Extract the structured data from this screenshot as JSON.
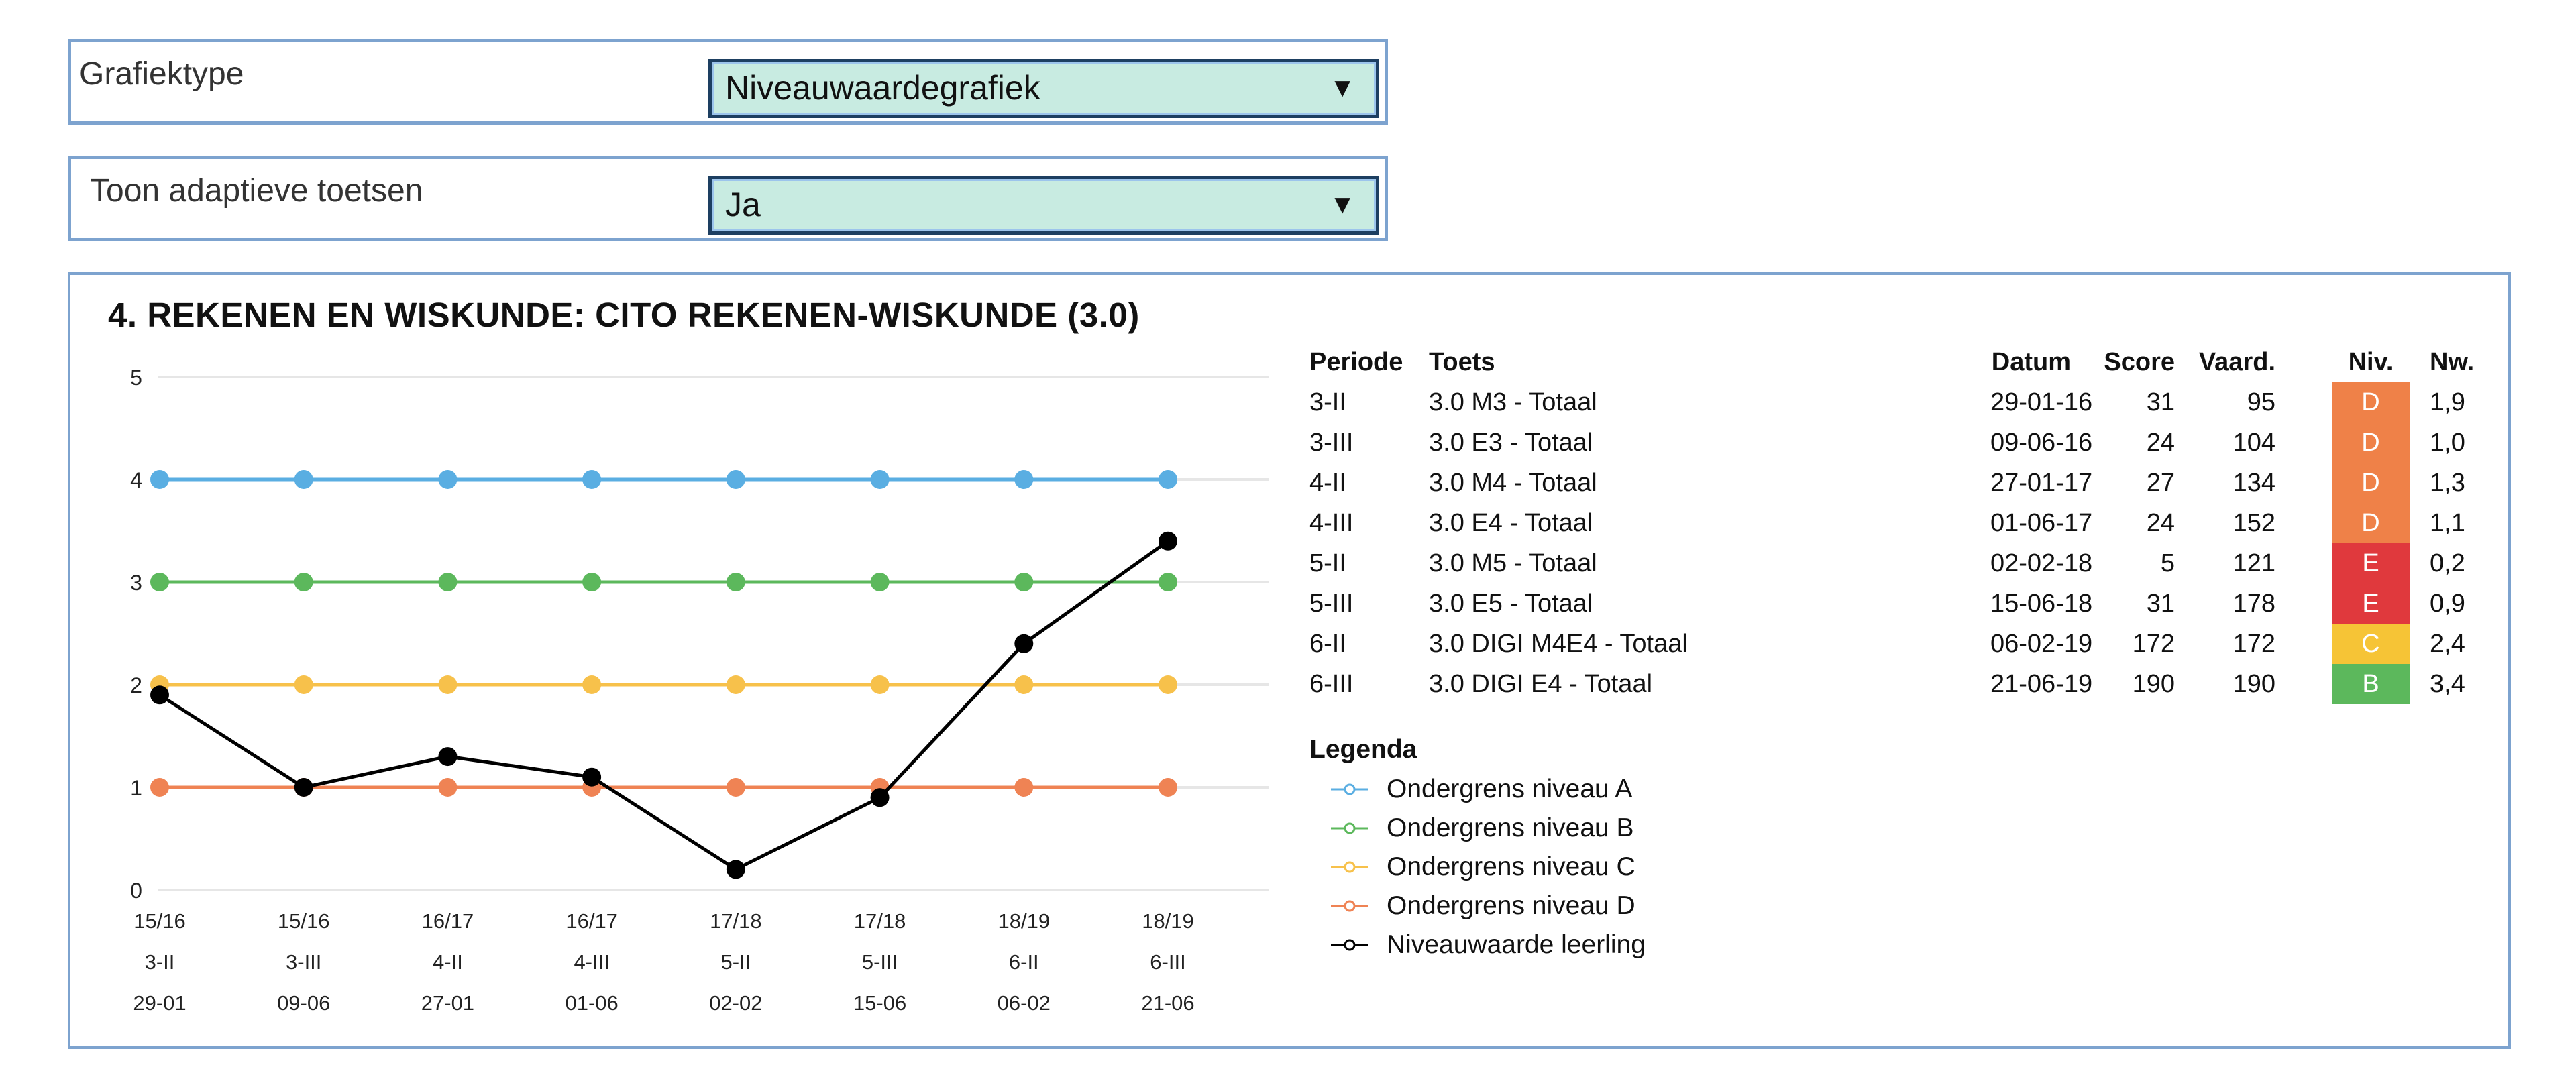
{
  "controls": {
    "graph_type": {
      "label": "Grafiektype",
      "value": "Niveauwaardegrafiek"
    },
    "adaptive": {
      "label": "Toon adaptieve toetsen",
      "value": "Ja"
    }
  },
  "panel": {
    "title": "4. REKENEN EN WISKUNDE: CITO REKENEN-WISKUNDE (3.0)"
  },
  "table": {
    "headers": {
      "periode": "Periode",
      "toets": "Toets",
      "datum": "Datum",
      "score": "Score",
      "vaard": "Vaard.",
      "niv": "Niv.",
      "nw": "Nw."
    },
    "rows": [
      {
        "periode": "3-II",
        "toets": "3.0 M3 - Totaal",
        "datum": "29-01-16",
        "score": "31",
        "vaard": "95",
        "niv": "D",
        "niv_color": "#ef8148",
        "nw": "1,9"
      },
      {
        "periode": "3-III",
        "toets": "3.0 E3 - Totaal",
        "datum": "09-06-16",
        "score": "24",
        "vaard": "104",
        "niv": "D",
        "niv_color": "#ef8148",
        "nw": "1,0"
      },
      {
        "periode": "4-II",
        "toets": "3.0 M4 - Totaal",
        "datum": "27-01-17",
        "score": "27",
        "vaard": "134",
        "niv": "D",
        "niv_color": "#ef8148",
        "nw": "1,3"
      },
      {
        "periode": "4-III",
        "toets": "3.0 E4 - Totaal",
        "datum": "01-06-17",
        "score": "24",
        "vaard": "152",
        "niv": "D",
        "niv_color": "#ef8148",
        "nw": "1,1"
      },
      {
        "periode": "5-II",
        "toets": "3.0 M5 - Totaal",
        "datum": "02-02-18",
        "score": "5",
        "vaard": "121",
        "niv": "E",
        "niv_color": "#e0393d",
        "nw": "0,2"
      },
      {
        "periode": "5-III",
        "toets": "3.0 E5 - Totaal",
        "datum": "15-06-18",
        "score": "31",
        "vaard": "178",
        "niv": "E",
        "niv_color": "#e0393d",
        "nw": "0,9"
      },
      {
        "periode": "6-II",
        "toets": "3.0 DIGI M4E4 - Totaal",
        "datum": "06-02-19",
        "score": "172",
        "vaard": "172",
        "niv": "C",
        "niv_color": "#f6c436",
        "nw": "2,4"
      },
      {
        "periode": "6-III",
        "toets": "3.0 DIGI E4 - Totaal",
        "datum": "21-06-19",
        "score": "190",
        "vaard": "190",
        "niv": "B",
        "niv_color": "#5cb85c",
        "nw": "3,4"
      }
    ]
  },
  "legend": {
    "title": "Legenda",
    "items": [
      {
        "label": "Ondergrens niveau A",
        "color": "#5aaee2"
      },
      {
        "label": "Ondergrens niveau B",
        "color": "#5cb85c"
      },
      {
        "label": "Ondergrens niveau C",
        "color": "#f7c14b"
      },
      {
        "label": "Ondergrens niveau D",
        "color": "#ef8354"
      },
      {
        "label": "Niveauwaarde leerling",
        "color": "#000000"
      }
    ]
  },
  "chart_data": {
    "type": "line",
    "x_labels": [
      [
        "15/16",
        "3-II",
        "29-01"
      ],
      [
        "15/16",
        "3-III",
        "09-06"
      ],
      [
        "16/17",
        "4-II",
        "27-01"
      ],
      [
        "16/17",
        "4-III",
        "01-06"
      ],
      [
        "17/18",
        "5-II",
        "02-02"
      ],
      [
        "17/18",
        "5-III",
        "15-06"
      ],
      [
        "18/19",
        "6-II",
        "06-02"
      ],
      [
        "18/19",
        "6-III",
        "21-06"
      ]
    ],
    "y_ticks": [
      "0",
      "1",
      "2",
      "3",
      "4",
      "5"
    ],
    "ylim": [
      0,
      5
    ],
    "grid": true,
    "series": [
      {
        "name": "Ondergrens niveau A",
        "color": "#5aaee2",
        "values": [
          4,
          4,
          4,
          4,
          4,
          4,
          4,
          4
        ]
      },
      {
        "name": "Ondergrens niveau B",
        "color": "#5cb85c",
        "values": [
          3,
          3,
          3,
          3,
          3,
          3,
          3,
          3
        ]
      },
      {
        "name": "Ondergrens niveau C",
        "color": "#f7c14b",
        "values": [
          2,
          2,
          2,
          2,
          2,
          2,
          2,
          2
        ]
      },
      {
        "name": "Ondergrens niveau D",
        "color": "#ef8354",
        "values": [
          1,
          1,
          1,
          1,
          1,
          1,
          1,
          1
        ]
      },
      {
        "name": "Niveauwaarde leerling",
        "color": "#000000",
        "values": [
          1.9,
          1.0,
          1.3,
          1.1,
          0.2,
          0.9,
          2.4,
          3.4
        ]
      }
    ]
  }
}
